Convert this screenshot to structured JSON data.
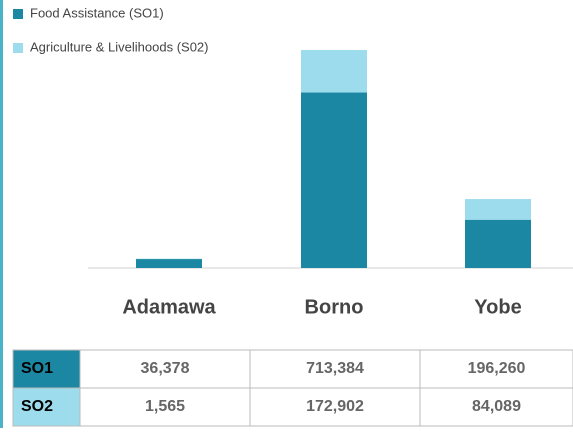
{
  "chart_data": {
    "type": "stacked-bar",
    "categories": [
      "Adamawa",
      "Borno",
      "Yobe"
    ],
    "series": [
      {
        "name": "Food Assistance (SO1)",
        "color": "#1b87a3",
        "values": [
          36378,
          713384,
          196260
        ],
        "value_labels": [
          "36,378",
          "713,384",
          "196,260"
        ]
      },
      {
        "name": "Agriculture & Livelihoods (S02)",
        "color": "#9ddcec",
        "values": [
          1565,
          172902,
          84089
        ],
        "value_labels": [
          "1,565",
          "172,902",
          "84,089"
        ]
      }
    ],
    "legend": "top-left",
    "table": {
      "row_labels": [
        "SO1",
        "SO2"
      ]
    }
  }
}
